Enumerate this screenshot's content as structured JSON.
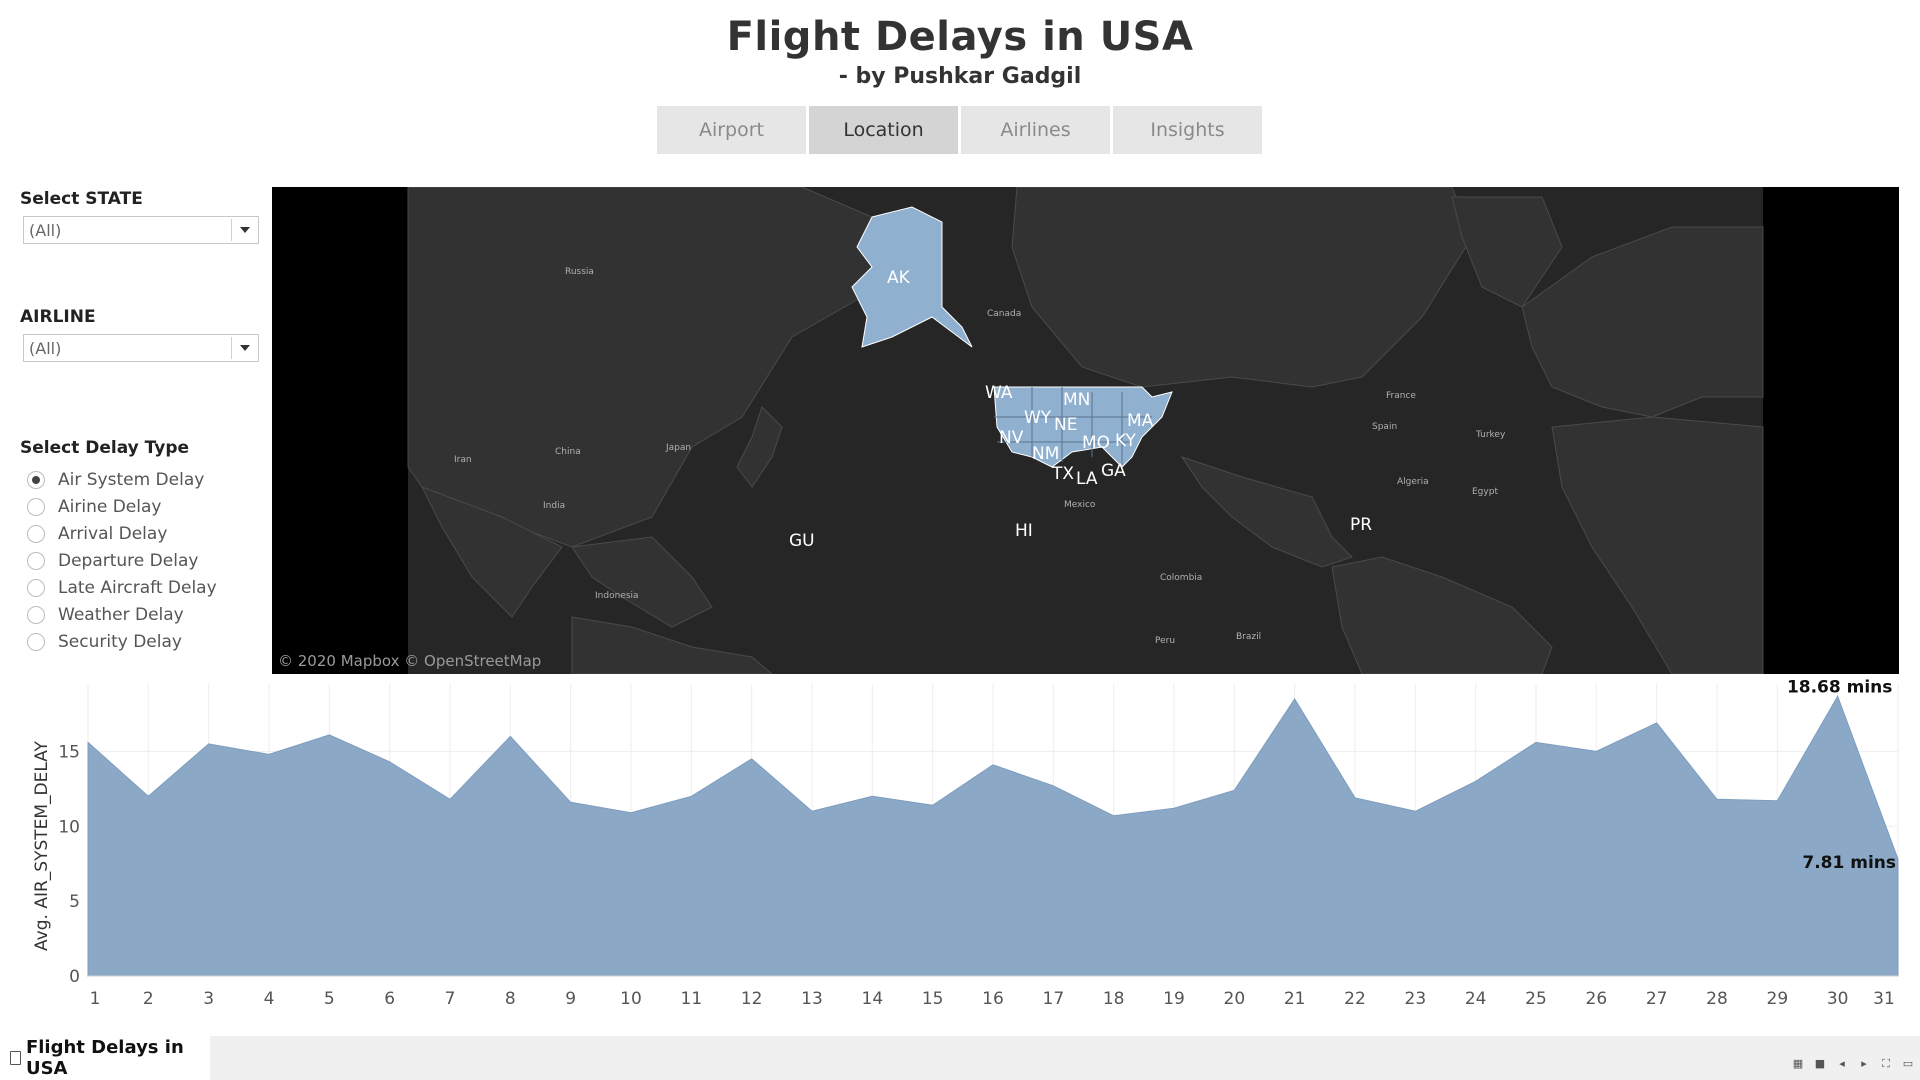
{
  "header": {
    "title": "Flight Delays in USA",
    "subtitle": "- by Pushkar Gadgil"
  },
  "tabs": [
    {
      "label": "Airport",
      "active": false
    },
    {
      "label": "Location",
      "active": true
    },
    {
      "label": "Airlines",
      "active": false
    },
    {
      "label": "Insights",
      "active": false
    }
  ],
  "filters": {
    "state": {
      "label": "Select STATE",
      "value": "(All)"
    },
    "airline": {
      "label": "AIRLINE",
      "value": "(All)"
    },
    "delay_type": {
      "label": "Select Delay Type",
      "selected": "Air System Delay",
      "options": [
        "Air System Delay",
        "Airine Delay",
        "Arrival Delay",
        "Departure Delay",
        "Late Aircraft Delay",
        "Weather Delay",
        "Security Delay"
      ]
    }
  },
  "map": {
    "credit": "© 2020 Mapbox © OpenStreetMap",
    "highlight_color": "#8fb0cf",
    "state_labels": [
      "AK",
      "HI",
      "GU",
      "PR",
      "WA",
      "MN",
      "WY",
      "NE",
      "NV",
      "MO",
      "KY",
      "MA",
      "NM",
      "TX",
      "LA",
      "GA"
    ],
    "place_labels": [
      "Russia",
      "Canada",
      "China",
      "Japan",
      "India",
      "Iran",
      "Indonesia",
      "Mexico",
      "Colombia",
      "Peru",
      "Brazil",
      "France",
      "Spain",
      "Turkey",
      "Algeria",
      "Egypt"
    ]
  },
  "chart_data": {
    "type": "area",
    "x": [
      1,
      2,
      3,
      4,
      5,
      6,
      7,
      8,
      9,
      10,
      11,
      12,
      13,
      14,
      15,
      16,
      17,
      18,
      19,
      20,
      21,
      22,
      23,
      24,
      25,
      26,
      27,
      28,
      29,
      30,
      31
    ],
    "series": [
      {
        "values": [
          15.6,
          12.0,
          15.5,
          14.8,
          16.1,
          14.3,
          11.8,
          16.0,
          11.6,
          10.9,
          12.0,
          14.5,
          11.0,
          12.0,
          11.4,
          14.1,
          12.7,
          10.7,
          11.2,
          12.4,
          18.5,
          11.9,
          11.0,
          13.0,
          15.6,
          15.0,
          16.9,
          11.8,
          11.7,
          18.68,
          7.81
        ]
      }
    ],
    "ylabel": "Avg. AIR_SYSTEM_DELAY",
    "yticks": [
      0,
      5,
      10,
      15
    ],
    "ylim": [
      0,
      19.5
    ],
    "color": "#8ba8c7",
    "annotations": [
      {
        "x": 30,
        "label": "18.68 mins"
      },
      {
        "x": 31,
        "label": "7.81 mins"
      }
    ]
  },
  "footer": {
    "sheet_name": "Flight Delays in USA"
  }
}
